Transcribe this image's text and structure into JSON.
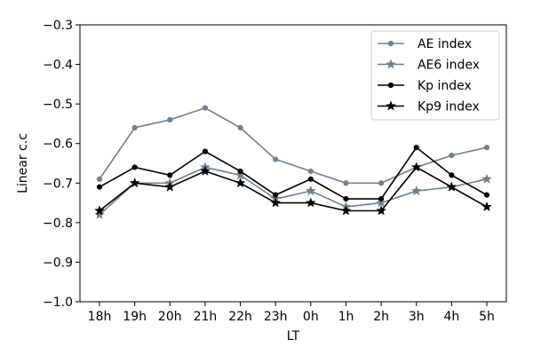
{
  "chart_data": {
    "type": "line",
    "title": "",
    "xlabel": "LT",
    "ylabel": "Linear c.c",
    "ylim": [
      -1.0,
      -0.3
    ],
    "yticks": [
      -1.0,
      -0.9,
      -0.8,
      -0.7,
      -0.6,
      -0.5,
      -0.4,
      -0.3
    ],
    "ytick_labels": [
      "−1.0",
      "−0.9",
      "−0.8",
      "−0.7",
      "−0.6",
      "−0.5",
      "−0.4",
      "−0.3"
    ],
    "grid": false,
    "legend_position": "top-right",
    "categories": [
      "18h",
      "19h",
      "20h",
      "21h",
      "22h",
      "23h",
      "0h",
      "1h",
      "2h",
      "3h",
      "4h",
      "5h"
    ],
    "series": [
      {
        "name": "AE index",
        "color": "#708090",
        "marker": "circle",
        "values": [
          -0.69,
          -0.56,
          -0.54,
          -0.51,
          -0.56,
          -0.64,
          -0.67,
          -0.7,
          -0.7,
          -0.66,
          -0.63,
          -0.61
        ]
      },
      {
        "name": "AE6 index",
        "color": "#708090",
        "marker": "star",
        "values": [
          -0.78,
          -0.7,
          -0.7,
          -0.66,
          -0.68,
          -0.74,
          -0.72,
          -0.76,
          -0.75,
          -0.72,
          -0.71,
          -0.69
        ]
      },
      {
        "name": "Kp index",
        "color": "#000000",
        "marker": "circle",
        "values": [
          -0.71,
          -0.66,
          -0.68,
          -0.62,
          -0.67,
          -0.73,
          -0.69,
          -0.74,
          -0.74,
          -0.61,
          -0.68,
          -0.73
        ]
      },
      {
        "name": "Kp9 index",
        "color": "#000000",
        "marker": "star",
        "values": [
          -0.77,
          -0.7,
          -0.71,
          -0.67,
          -0.7,
          -0.75,
          -0.75,
          -0.77,
          -0.77,
          -0.66,
          -0.71,
          -0.76
        ]
      }
    ]
  }
}
